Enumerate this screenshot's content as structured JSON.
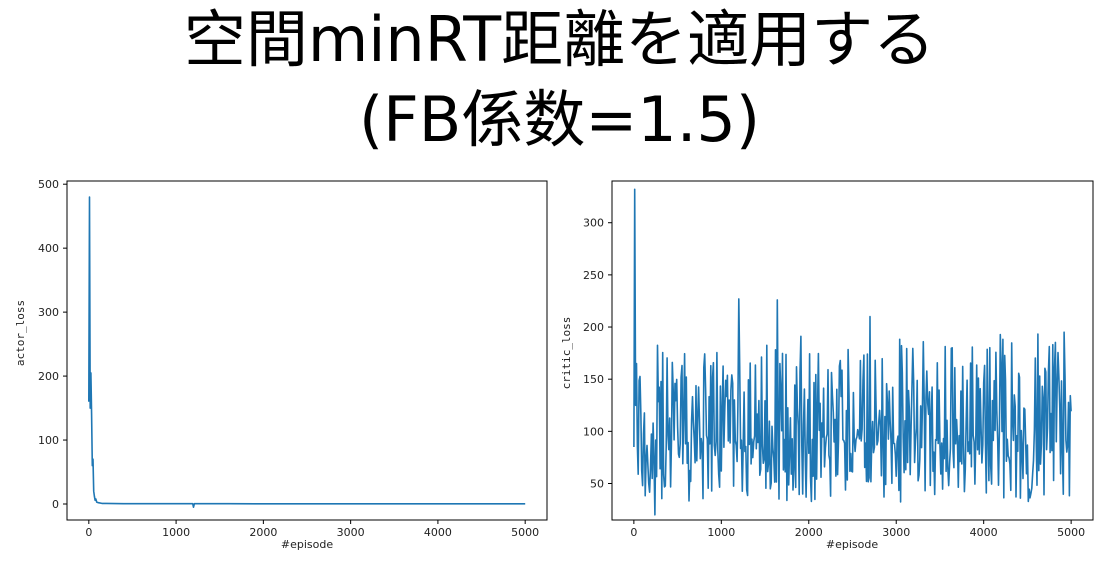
{
  "title": {
    "line1": "空間minRT距離を適用する",
    "line2": "(FB係数=1.5)"
  },
  "colors": {
    "series": "#1f77b4",
    "axes": "#000000"
  },
  "chart_data": [
    {
      "type": "line",
      "name": "actor",
      "xlabel": "#episode",
      "ylabel": "actor_loss",
      "xlim": [
        -250,
        5250
      ],
      "ylim": [
        -25,
        505
      ],
      "xticks": [
        0,
        1000,
        2000,
        3000,
        4000,
        5000
      ],
      "yticks": [
        0,
        100,
        200,
        300,
        400,
        500
      ],
      "grid": false,
      "series": [
        {
          "values_description_points": [
            [
              0,
              160
            ],
            [
              8,
              480
            ],
            [
              16,
              150
            ],
            [
              24,
              205
            ],
            [
              32,
              140
            ],
            [
              40,
              60
            ],
            [
              48,
              70
            ],
            [
              56,
              20
            ],
            [
              64,
              12
            ],
            [
              72,
              6
            ],
            [
              80,
              8
            ],
            [
              90,
              3
            ],
            [
              110,
              2
            ],
            [
              150,
              1
            ],
            [
              200,
              1
            ],
            [
              400,
              0.5
            ],
            [
              800,
              0.5
            ],
            [
              1190,
              0.5
            ],
            [
              1200,
              -5
            ],
            [
              1210,
              0.5
            ],
            [
              1600,
              0.5
            ],
            [
              2000,
              0.4
            ],
            [
              3000,
              0.4
            ],
            [
              4000,
              0.4
            ],
            [
              5000,
              0.4
            ]
          ]
        }
      ]
    },
    {
      "type": "line",
      "name": "critic",
      "xlabel": "#episode",
      "ylabel": "critic_loss",
      "xlim": [
        -250,
        5250
      ],
      "ylim": [
        15,
        340
      ],
      "xticks": [
        0,
        1000,
        2000,
        3000,
        4000,
        5000
      ],
      "yticks": [
        50,
        100,
        150,
        200,
        250,
        300
      ],
      "grid": false,
      "series": [
        {
          "spike": [
            [
              0,
              85
            ],
            [
              10,
              332
            ],
            [
              20,
              125
            ],
            [
              30,
              165
            ],
            [
              40,
              85
            ]
          ],
          "noise_start": 50,
          "noise_end": 5000,
          "noise_step": 10,
          "noise_mean": 92,
          "noise_low": 20,
          "noise_high": 228,
          "peaks": [
            [
              1200,
              227
            ],
            [
              1640,
              226
            ],
            [
              2700,
              210
            ],
            [
              4920,
              195
            ],
            [
              240,
              15
            ]
          ]
        }
      ]
    }
  ]
}
